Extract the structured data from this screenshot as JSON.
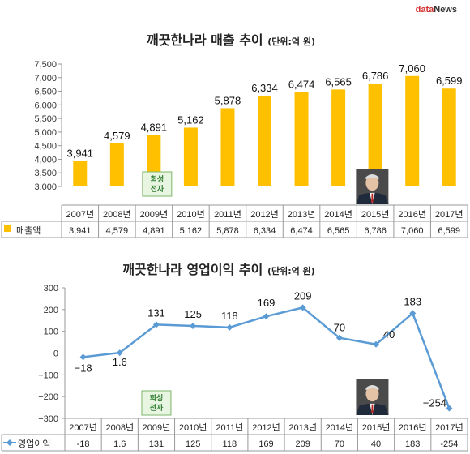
{
  "brand": {
    "prefix": "data",
    "suffix": "News"
  },
  "chart_data": [
    {
      "type": "bar",
      "title": "깨끗한나라 매출 추이",
      "unit": "(단위:억 원)",
      "categories": [
        "2007년",
        "2008년",
        "2009년",
        "2010년",
        "2011년",
        "2012년",
        "2013년",
        "2014년",
        "2015년",
        "2016년",
        "2017년"
      ],
      "series": [
        {
          "name": "매출액",
          "values": [
            3941,
            4579,
            4891,
            5162,
            5878,
            6334,
            6474,
            6565,
            6786,
            7060,
            6599
          ]
        }
      ],
      "value_labels": [
        "3,941",
        "4,579",
        "4,891",
        "5,162",
        "5,878",
        "6,334",
        "6,474",
        "6,565",
        "6,786",
        "7,060",
        "6,599"
      ],
      "yticks": [
        "3,000",
        "3,500",
        "4,000",
        "4,500",
        "5,000",
        "5,500",
        "6,000",
        "6,500",
        "7,000",
        "7,500"
      ],
      "ylim": [
        3000,
        7500
      ],
      "color": "#FFC000",
      "annotation": {
        "text": [
          "희성",
          "전자"
        ],
        "category": "2009년"
      },
      "portrait_category": "2015년",
      "legend": "bottom-table"
    },
    {
      "type": "line",
      "title": "깨끗한나라 영업이익 추이",
      "unit": "(단위:억 원)",
      "categories": [
        "2007년",
        "2008년",
        "2009년",
        "2010년",
        "2011년",
        "2012년",
        "2013년",
        "2014년",
        "2015년",
        "2016년",
        "2017년"
      ],
      "series": [
        {
          "name": "영업이익",
          "values": [
            -18,
            1.6,
            131,
            125,
            118,
            169,
            209,
            70,
            40,
            183,
            -254
          ]
        }
      ],
      "value_labels": [
        "-18",
        "1.6",
        "131",
        "125",
        "118",
        "169",
        "209",
        "70",
        "40",
        "183",
        "-254"
      ],
      "point_labels": [
        "−18",
        "1.6",
        "131",
        "125",
        "118",
        "169",
        "209",
        "70",
        "40",
        "183",
        "−254"
      ],
      "yticks": [
        "300",
        "200",
        "100",
        "0",
        "−100",
        "−200",
        "−300"
      ],
      "ylim": [
        -300,
        300
      ],
      "color": "#5B9BD5",
      "annotation": {
        "text": [
          "희성",
          "전자"
        ],
        "category": "2009년"
      },
      "portrait_category": "2015년",
      "legend": "bottom-table"
    }
  ]
}
